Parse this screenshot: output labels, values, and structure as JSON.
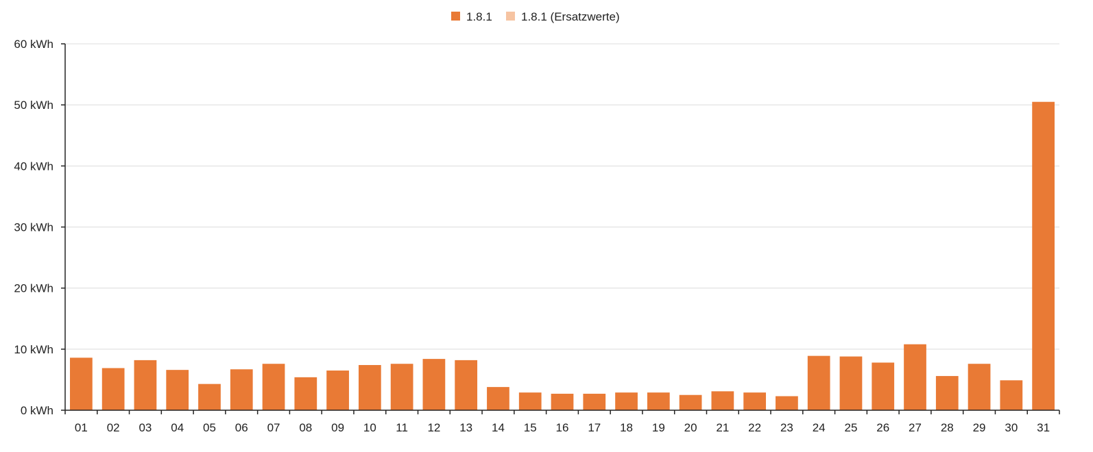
{
  "legend": {
    "items": [
      {
        "label": "1.8.1",
        "color": "#e97a35"
      },
      {
        "label": "1.8.1 (Ersatzwerte)",
        "color": "#f6c4a2"
      }
    ]
  },
  "chart_data": {
    "type": "bar",
    "title": "",
    "xlabel": "",
    "ylabel": "",
    "ylim": [
      0,
      60
    ],
    "y_ticks": [
      0,
      10,
      20,
      30,
      40,
      50,
      60
    ],
    "y_tick_labels": [
      "0 kWh",
      "10 kWh",
      "20 kWh",
      "30 kWh",
      "40 kWh",
      "50 kWh",
      "60 kWh"
    ],
    "grid": true,
    "legend_position": "top-center",
    "categories": [
      "01",
      "02",
      "03",
      "04",
      "05",
      "06",
      "07",
      "08",
      "09",
      "10",
      "11",
      "12",
      "13",
      "14",
      "15",
      "16",
      "17",
      "18",
      "19",
      "20",
      "21",
      "22",
      "23",
      "24",
      "25",
      "26",
      "27",
      "28",
      "29",
      "30",
      "31"
    ],
    "series": [
      {
        "name": "1.8.1",
        "color": "#e97a35",
        "values": [
          8.6,
          6.9,
          8.2,
          6.6,
          4.3,
          6.7,
          7.6,
          5.4,
          6.5,
          7.4,
          7.6,
          8.4,
          8.2,
          3.8,
          2.9,
          2.7,
          2.7,
          2.9,
          2.9,
          2.5,
          3.1,
          2.9,
          2.3,
          8.9,
          8.8,
          7.8,
          10.8,
          5.6,
          7.6,
          4.9,
          50.5
        ]
      },
      {
        "name": "1.8.1 (Ersatzwerte)",
        "color": "#f6c4a2",
        "values": [
          0,
          0,
          0,
          0,
          0,
          0,
          0,
          0,
          0,
          0,
          0,
          0,
          0,
          0,
          0,
          0,
          0,
          0,
          0,
          0,
          0,
          0,
          0,
          0,
          0,
          0,
          0,
          0,
          0,
          0,
          0
        ]
      }
    ]
  }
}
